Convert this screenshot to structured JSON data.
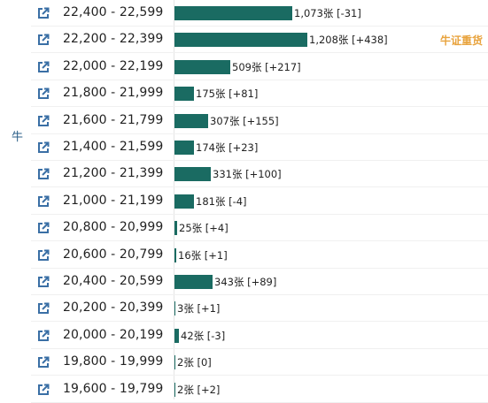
{
  "side_label": "牛",
  "tag_label": "牛证重货",
  "rows": [
    {
      "range": "22,400 - 22,599",
      "count": 1073,
      "value_label": "1,073张 [-31]"
    },
    {
      "range": "22,200 - 22,399",
      "count": 1208,
      "value_label": "1,208张 [+438]"
    },
    {
      "range": "22,000 - 22,199",
      "count": 509,
      "value_label": "509张 [+217]"
    },
    {
      "range": "21,800 - 21,999",
      "count": 175,
      "value_label": "175张 [+81]"
    },
    {
      "range": "21,600 - 21,799",
      "count": 307,
      "value_label": "307张 [+155]"
    },
    {
      "range": "21,400 - 21,599",
      "count": 174,
      "value_label": "174张 [+23]"
    },
    {
      "range": "21,200 - 21,399",
      "count": 331,
      "value_label": "331张 [+100]"
    },
    {
      "range": "21,000 - 21,199",
      "count": 181,
      "value_label": "181张 [-4]"
    },
    {
      "range": "20,800 - 20,999",
      "count": 25,
      "value_label": "25张 [+4]"
    },
    {
      "range": "20,600 - 20,799",
      "count": 16,
      "value_label": "16张 [+1]"
    },
    {
      "range": "20,400 - 20,599",
      "count": 343,
      "value_label": "343张 [+89]"
    },
    {
      "range": "20,200 - 20,399",
      "count": 3,
      "value_label": "3张 [+1]"
    },
    {
      "range": "20,000 - 20,199",
      "count": 42,
      "value_label": "42张 [-3]"
    },
    {
      "range": "19,800 - 19,999",
      "count": 2,
      "value_label": "2张 [0]"
    },
    {
      "range": "19,600 - 19,799",
      "count": 2,
      "value_label": "2张 [+2]"
    }
  ],
  "highlight_row": 1,
  "icons": {
    "row_link": "external-link-icon"
  },
  "colors": {
    "bar": "#1a6b62",
    "tag": "#e8a33d",
    "side_label": "#2b5f88",
    "icon": "#3a6fa5"
  }
}
